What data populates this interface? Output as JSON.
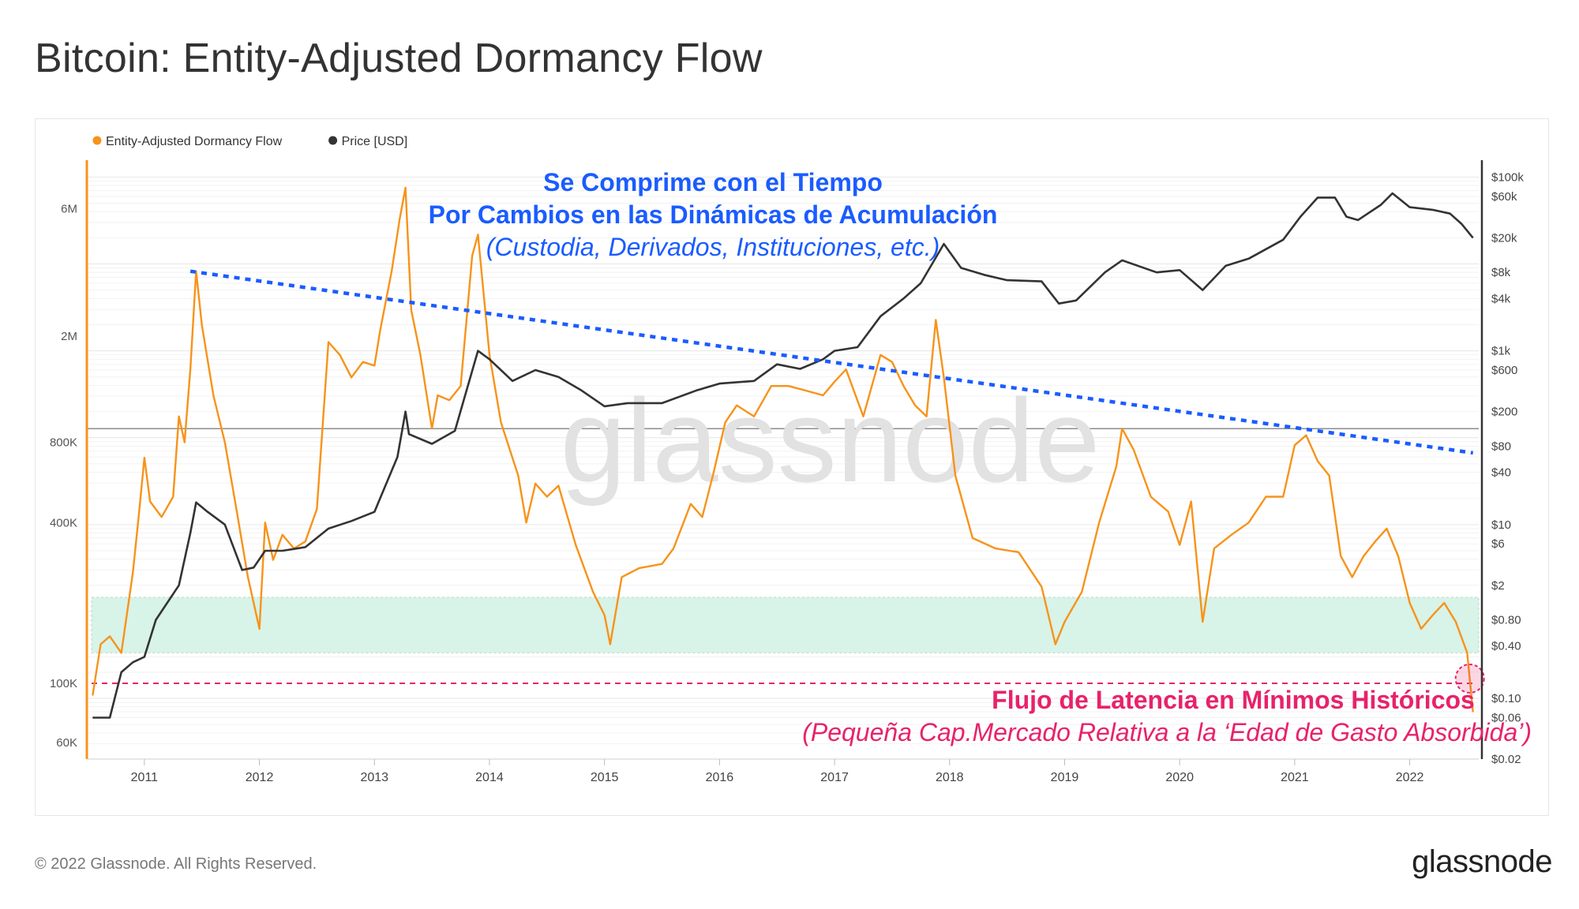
{
  "page": {
    "title": "Bitcoin: Entity-Adjusted Dormancy Flow",
    "copyright": "© 2022 Glassnode. All Rights Reserved.",
    "brand": "glassnode"
  },
  "chart_data": {
    "type": "line",
    "watermark": "glassnode",
    "legend": {
      "placement": "top-left",
      "items": [
        {
          "name": "Entity-Adjusted Dormancy Flow",
          "color": "#f7931a"
        },
        {
          "name": "Price [USD]",
          "color": "#333333"
        }
      ]
    },
    "x_axis": {
      "ticks": [
        "2011",
        "2012",
        "2013",
        "2014",
        "2015",
        "2016",
        "2017",
        "2018",
        "2019",
        "2020",
        "2021",
        "2022"
      ],
      "range": [
        2010.5,
        2022.6
      ]
    },
    "y_left": {
      "scale": "log",
      "ticks": [
        "6M",
        "2M",
        "800K",
        "400K",
        "100K",
        "60K"
      ],
      "range": [
        52000,
        9000000
      ]
    },
    "y_right": {
      "scale": "log",
      "ticks": [
        "$100k",
        "$60k",
        "$20k",
        "$8k",
        "$4k",
        "$1k",
        "$600",
        "$200",
        "$80",
        "$40",
        "$10",
        "$6",
        "$2",
        "$0.80",
        "$0.40",
        "$0.10",
        "$0.06",
        "$0.02"
      ],
      "range": [
        0.02,
        150000
      ]
    },
    "series": [
      {
        "name": "Entity-Adjusted Dormancy Flow",
        "color": "#f7931a",
        "axis": "left",
        "points": [
          [
            2010.55,
            90000
          ],
          [
            2010.62,
            140000
          ],
          [
            2010.7,
            150000
          ],
          [
            2010.8,
            130000
          ],
          [
            2010.9,
            260000
          ],
          [
            2010.95,
            420000
          ],
          [
            2011.0,
            700000
          ],
          [
            2011.05,
            480000
          ],
          [
            2011.15,
            420000
          ],
          [
            2011.25,
            500000
          ],
          [
            2011.3,
            1000000
          ],
          [
            2011.35,
            800000
          ],
          [
            2011.4,
            1500000
          ],
          [
            2011.45,
            3500000
          ],
          [
            2011.5,
            2200000
          ],
          [
            2011.6,
            1200000
          ],
          [
            2011.7,
            800000
          ],
          [
            2011.8,
            450000
          ],
          [
            2011.9,
            250000
          ],
          [
            2012.0,
            160000
          ],
          [
            2012.05,
            400000
          ],
          [
            2012.12,
            290000
          ],
          [
            2012.2,
            360000
          ],
          [
            2012.3,
            320000
          ],
          [
            2012.4,
            340000
          ],
          [
            2012.5,
            450000
          ],
          [
            2012.6,
            1900000
          ],
          [
            2012.7,
            1700000
          ],
          [
            2012.8,
            1400000
          ],
          [
            2012.9,
            1600000
          ],
          [
            2013.0,
            1550000
          ],
          [
            2013.05,
            2100000
          ],
          [
            2013.15,
            3500000
          ],
          [
            2013.22,
            5500000
          ],
          [
            2013.27,
            7200000
          ],
          [
            2013.32,
            2500000
          ],
          [
            2013.4,
            1700000
          ],
          [
            2013.5,
            900000
          ],
          [
            2013.55,
            1200000
          ],
          [
            2013.65,
            1150000
          ],
          [
            2013.75,
            1300000
          ],
          [
            2013.85,
            4000000
          ],
          [
            2013.9,
            4800000
          ],
          [
            2014.0,
            1700000
          ],
          [
            2014.1,
            950000
          ],
          [
            2014.25,
            600000
          ],
          [
            2014.32,
            400000
          ],
          [
            2014.4,
            560000
          ],
          [
            2014.5,
            500000
          ],
          [
            2014.6,
            550000
          ],
          [
            2014.75,
            330000
          ],
          [
            2014.9,
            220000
          ],
          [
            2015.0,
            180000
          ],
          [
            2015.05,
            140000
          ],
          [
            2015.15,
            250000
          ],
          [
            2015.3,
            270000
          ],
          [
            2015.5,
            280000
          ],
          [
            2015.6,
            320000
          ],
          [
            2015.75,
            470000
          ],
          [
            2015.85,
            420000
          ],
          [
            2015.95,
            620000
          ],
          [
            2016.05,
            950000
          ],
          [
            2016.15,
            1100000
          ],
          [
            2016.3,
            1000000
          ],
          [
            2016.45,
            1300000
          ],
          [
            2016.6,
            1300000
          ],
          [
            2016.75,
            1250000
          ],
          [
            2016.9,
            1200000
          ],
          [
            2017.0,
            1350000
          ],
          [
            2017.1,
            1500000
          ],
          [
            2017.25,
            1000000
          ],
          [
            2017.4,
            1700000
          ],
          [
            2017.5,
            1600000
          ],
          [
            2017.6,
            1300000
          ],
          [
            2017.7,
            1100000
          ],
          [
            2017.8,
            1000000
          ],
          [
            2017.88,
            2300000
          ],
          [
            2017.95,
            1400000
          ],
          [
            2018.05,
            600000
          ],
          [
            2018.2,
            350000
          ],
          [
            2018.4,
            320000
          ],
          [
            2018.6,
            310000
          ],
          [
            2018.8,
            230000
          ],
          [
            2018.92,
            140000
          ],
          [
            2019.0,
            170000
          ],
          [
            2019.15,
            220000
          ],
          [
            2019.3,
            400000
          ],
          [
            2019.45,
            650000
          ],
          [
            2019.5,
            900000
          ],
          [
            2019.6,
            750000
          ],
          [
            2019.75,
            500000
          ],
          [
            2019.9,
            440000
          ],
          [
            2020.0,
            330000
          ],
          [
            2020.1,
            480000
          ],
          [
            2020.2,
            170000
          ],
          [
            2020.3,
            320000
          ],
          [
            2020.45,
            360000
          ],
          [
            2020.6,
            400000
          ],
          [
            2020.75,
            500000
          ],
          [
            2020.9,
            500000
          ],
          [
            2021.0,
            780000
          ],
          [
            2021.1,
            850000
          ],
          [
            2021.2,
            680000
          ],
          [
            2021.3,
            600000
          ],
          [
            2021.4,
            300000
          ],
          [
            2021.5,
            250000
          ],
          [
            2021.6,
            300000
          ],
          [
            2021.7,
            340000
          ],
          [
            2021.8,
            380000
          ],
          [
            2021.9,
            300000
          ],
          [
            2022.0,
            200000
          ],
          [
            2022.1,
            160000
          ],
          [
            2022.2,
            180000
          ],
          [
            2022.3,
            200000
          ],
          [
            2022.4,
            170000
          ],
          [
            2022.5,
            130000
          ],
          [
            2022.55,
            78000
          ]
        ]
      },
      {
        "name": "Price [USD]",
        "color": "#333333",
        "axis": "right",
        "points": [
          [
            2010.55,
            0.06
          ],
          [
            2010.7,
            0.06
          ],
          [
            2010.8,
            0.2
          ],
          [
            2010.9,
            0.26
          ],
          [
            2011.0,
            0.3
          ],
          [
            2011.1,
            0.8
          ],
          [
            2011.3,
            2
          ],
          [
            2011.4,
            8
          ],
          [
            2011.45,
            18
          ],
          [
            2011.55,
            14
          ],
          [
            2011.7,
            10
          ],
          [
            2011.85,
            3
          ],
          [
            2011.95,
            3.2
          ],
          [
            2012.05,
            5
          ],
          [
            2012.2,
            5
          ],
          [
            2012.4,
            5.5
          ],
          [
            2012.6,
            9
          ],
          [
            2012.8,
            11
          ],
          [
            2013.0,
            14
          ],
          [
            2013.2,
            60
          ],
          [
            2013.27,
            200
          ],
          [
            2013.3,
            110
          ],
          [
            2013.5,
            85
          ],
          [
            2013.7,
            120
          ],
          [
            2013.9,
            1000
          ],
          [
            2014.0,
            800
          ],
          [
            2014.2,
            450
          ],
          [
            2014.4,
            600
          ],
          [
            2014.6,
            500
          ],
          [
            2014.8,
            350
          ],
          [
            2015.0,
            230
          ],
          [
            2015.2,
            250
          ],
          [
            2015.5,
            250
          ],
          [
            2015.8,
            350
          ],
          [
            2016.0,
            420
          ],
          [
            2016.3,
            450
          ],
          [
            2016.5,
            700
          ],
          [
            2016.7,
            620
          ],
          [
            2016.9,
            800
          ],
          [
            2017.0,
            1000
          ],
          [
            2017.2,
            1100
          ],
          [
            2017.4,
            2500
          ],
          [
            2017.6,
            4000
          ],
          [
            2017.75,
            6000
          ],
          [
            2017.95,
            17000
          ],
          [
            2018.1,
            9000
          ],
          [
            2018.3,
            7500
          ],
          [
            2018.5,
            6500
          ],
          [
            2018.8,
            6300
          ],
          [
            2018.95,
            3500
          ],
          [
            2019.1,
            3800
          ],
          [
            2019.35,
            8000
          ],
          [
            2019.5,
            11000
          ],
          [
            2019.8,
            8000
          ],
          [
            2020.0,
            8500
          ],
          [
            2020.2,
            5000
          ],
          [
            2020.4,
            9500
          ],
          [
            2020.6,
            11500
          ],
          [
            2020.9,
            19000
          ],
          [
            2021.05,
            35000
          ],
          [
            2021.2,
            58000
          ],
          [
            2021.35,
            58000
          ],
          [
            2021.45,
            35000
          ],
          [
            2021.55,
            32000
          ],
          [
            2021.75,
            48000
          ],
          [
            2021.85,
            65000
          ],
          [
            2022.0,
            45000
          ],
          [
            2022.2,
            42000
          ],
          [
            2022.35,
            38000
          ],
          [
            2022.45,
            29000
          ],
          [
            2022.55,
            20000
          ]
        ]
      }
    ],
    "band": {
      "low": 130000,
      "high": 210000,
      "color": "#d8f3e8"
    },
    "horizontal_line": {
      "value": 900000,
      "color": "#666666"
    },
    "trendline": {
      "from": [
        2011.4,
        3500000
      ],
      "to": [
        2022.55,
        730000
      ],
      "color": "#1a5cff"
    },
    "low_line": {
      "value": 100000,
      "color": "#e8226a"
    },
    "low_marker": {
      "x": 2022.55,
      "value": 100000
    },
    "annotations": {
      "top_line1": "Se Comprime con el Tiempo",
      "top_line2": "Por Cambios en las Dinámicas de Acumulación",
      "top_line3": "(Custodia, Derivados, Instituciones, etc.)",
      "bottom_line1": "Flujo de Latencia en Mínimos Históricos",
      "bottom_line2": "(Pequeña Cap.Mercado Relativa a la ‘Edad de Gasto Absorbida’)"
    }
  }
}
